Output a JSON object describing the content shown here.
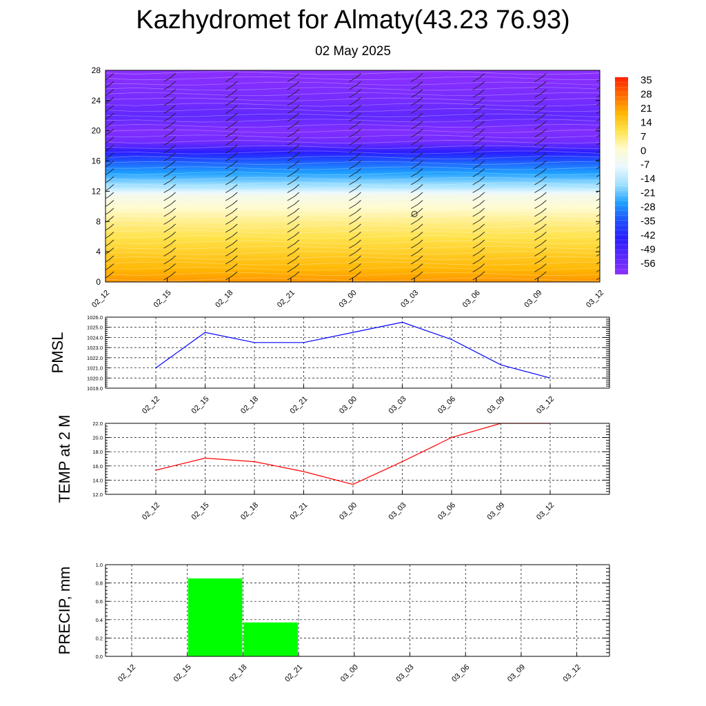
{
  "header": {
    "title": "Kazhydromet for Almaty(43.23 76.93)",
    "subtitle": "02 May 2025"
  },
  "chart_data": [
    {
      "type": "heatmap",
      "title": "Kazhydromet for Almaty(43.23 76.93)",
      "subtitle": "02 May 2025",
      "x_ticks": [
        "02_12",
        "02_15",
        "02_18",
        "02_21",
        "03_00",
        "03_03",
        "03_06",
        "03_09",
        "03_12"
      ],
      "y_ticks": [
        "0",
        "4",
        "8",
        "12",
        "16",
        "20",
        "24",
        "28"
      ],
      "ylim": [
        0,
        28
      ],
      "colorbar": {
        "labels": [
          "35",
          "28",
          "21",
          "14",
          "7",
          "0",
          "-7",
          "-14",
          "-21",
          "-28",
          "-35",
          "-42",
          "-49",
          "-56"
        ],
        "values": [
          35,
          28,
          21,
          14,
          7,
          0,
          -7,
          -14,
          -21,
          -28,
          -35,
          -42,
          -49,
          -56
        ],
        "range": [
          -60,
          38
        ]
      },
      "temperature_profile": {
        "levels": [
          0,
          2,
          4,
          6,
          8,
          10,
          11.5,
          12.5,
          14,
          16,
          17.5,
          18.5,
          20,
          22,
          24,
          26,
          28
        ],
        "values": [
          24,
          19,
          15,
          11,
          7,
          2,
          -3,
          -13,
          -22,
          -32,
          -45,
          -55,
          -58,
          -52,
          -56,
          -58,
          -60
        ]
      },
      "colors": {
        "stops": [
          "#ff2000",
          "#ff6a00",
          "#ffb400",
          "#ffe24a",
          "#fffbd0",
          "#eaf8ff",
          "#9ee0ff",
          "#1ea0ff",
          "#1f4fff",
          "#2a1dff",
          "#5a28ff",
          "#8c30ff"
        ],
        "barbs": "#222222",
        "contours": "#ffffff"
      },
      "grid": true,
      "overlay": "wind barbs"
    },
    {
      "type": "line",
      "ylabel": "PMSL",
      "categories": [
        "02_12",
        "02_15",
        "02_18",
        "02_21",
        "03_00",
        "03_03",
        "03_06",
        "03_09",
        "03_12"
      ],
      "values": [
        1021.0,
        1024.5,
        1023.5,
        1023.5,
        1024.5,
        1025.5,
        1023.8,
        1021.3,
        1020.0
      ],
      "ylim": [
        1019.0,
        1026.0
      ],
      "y_ticks": [
        "1019.0",
        "1020.0",
        "1021.0",
        "1022.0",
        "1023.0",
        "1024.0",
        "1025.0",
        "1026.0"
      ],
      "color": "#0000ff",
      "grid": true
    },
    {
      "type": "line",
      "ylabel": "TEMP at 2 M",
      "categories": [
        "02_12",
        "02_15",
        "02_18",
        "02_21",
        "03_00",
        "03_03",
        "03_06",
        "03_09",
        "03_12"
      ],
      "values": [
        15.4,
        17.1,
        16.6,
        15.2,
        13.4,
        16.6,
        20.0,
        22.0,
        22.0
      ],
      "ylim": [
        12.0,
        22.0
      ],
      "y_ticks": [
        "12.0",
        "14.0",
        "16.0",
        "18.0",
        "20.0",
        "22.0"
      ],
      "color": "#ff0000",
      "grid": true
    },
    {
      "type": "bar",
      "ylabel": "PRECIP, mm",
      "categories": [
        "02_12",
        "02_15",
        "02_18",
        "02_21",
        "03_00",
        "03_03",
        "03_06",
        "03_09",
        "03_12"
      ],
      "values": [
        0,
        0.85,
        0.37,
        0,
        0,
        0,
        0,
        0,
        0
      ],
      "ylim": [
        0.0,
        1.0
      ],
      "y_ticks": [
        "0.0",
        "0.2",
        "0.4",
        "0.6",
        "0.8",
        "1.0"
      ],
      "color": "#00ff00",
      "grid": true
    }
  ]
}
